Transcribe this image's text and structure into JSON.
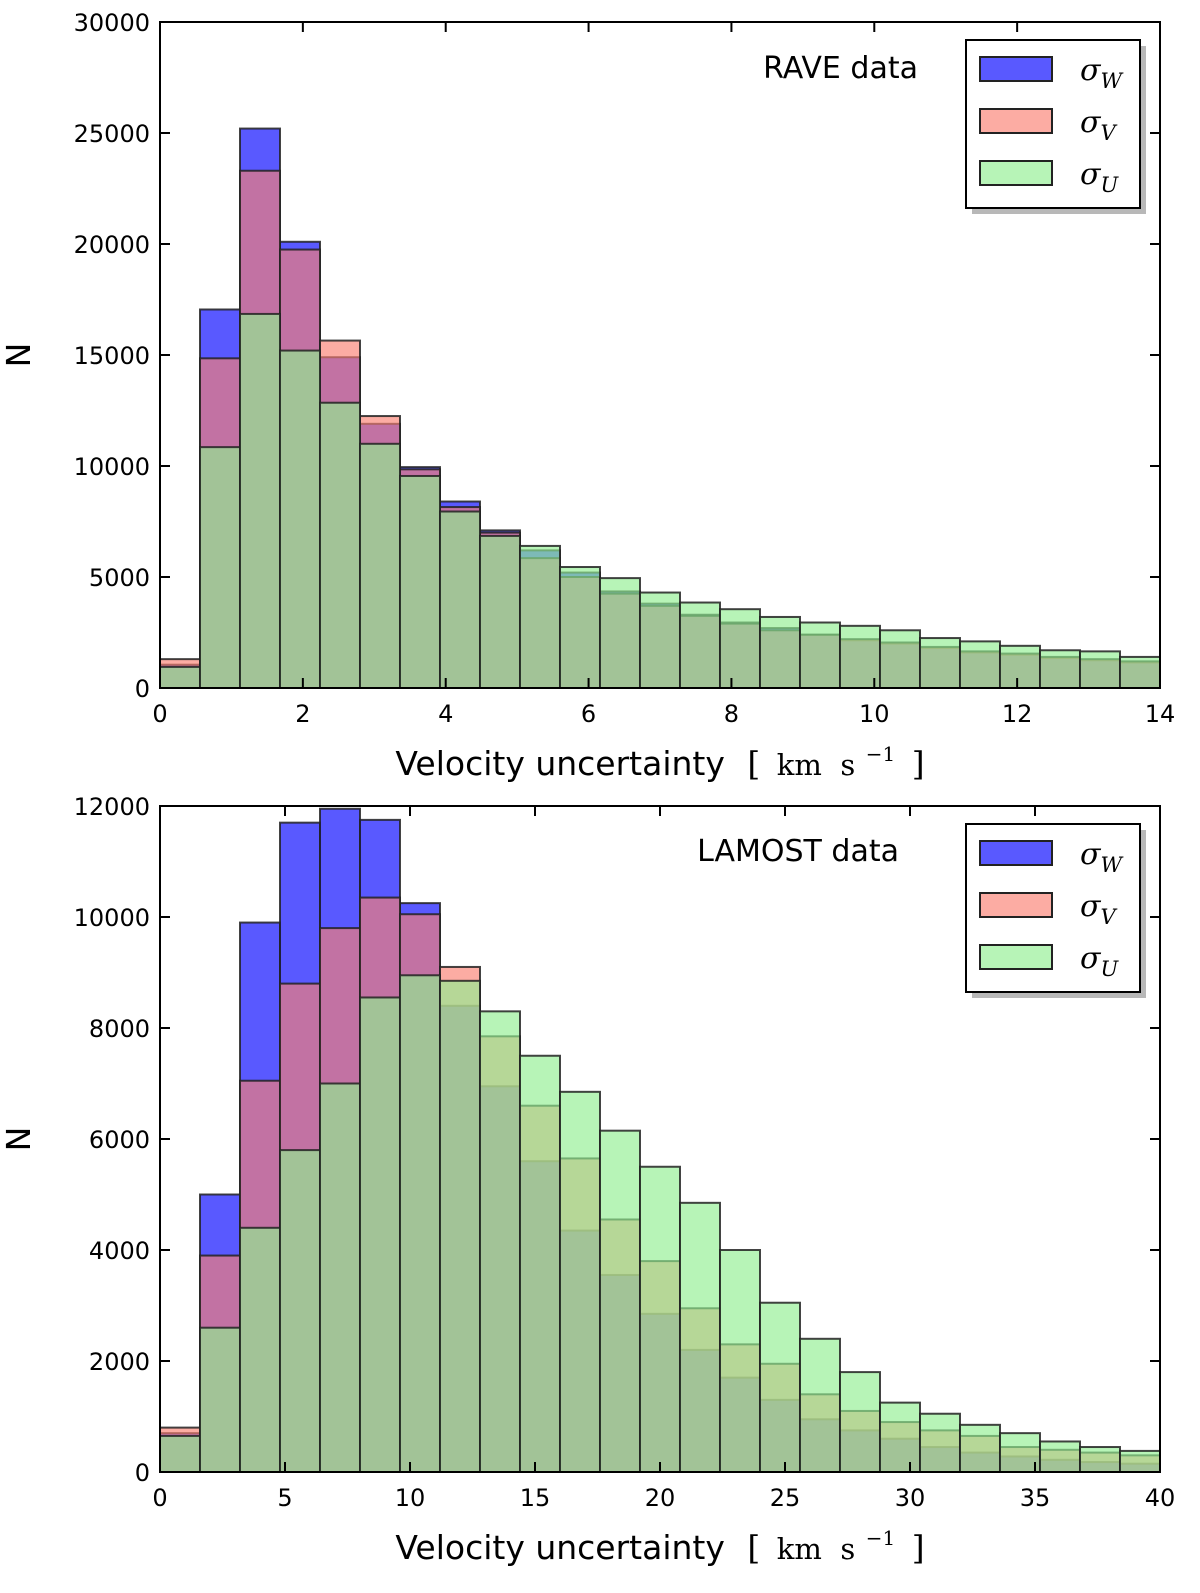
{
  "chart_data": [
    {
      "type": "bar",
      "subtype": "overlaid-histogram",
      "annotation": "RAVE data",
      "xlabel_text": "Velocity uncertainty",
      "xlabel_unit": {
        "prefix": "[",
        "km": "km",
        "s": "s",
        "exp": "−1",
        "suffix": "]"
      },
      "ylabel": "N",
      "xlim": [
        0,
        14
      ],
      "ylim": [
        0,
        30000
      ],
      "xticks": [
        "0",
        "2",
        "4",
        "6",
        "8",
        "10",
        "12",
        "14"
      ],
      "yticks": [
        "0",
        "5000",
        "10000",
        "15000",
        "20000",
        "25000",
        "30000"
      ],
      "legend_position": "top-right",
      "bin_width": 0.56,
      "bin_starts": [
        0,
        0.56,
        1.12,
        1.68,
        2.24,
        2.8,
        3.36,
        3.92,
        4.48,
        5.04,
        5.6,
        6.16,
        6.72,
        7.28,
        7.84,
        8.4,
        8.96,
        9.52,
        10.08,
        10.64,
        11.2,
        11.76,
        12.32,
        12.88,
        13.44
      ],
      "series": [
        {
          "name": "σ_W",
          "label_base": "σ",
          "label_sub": "W",
          "color": "#0000ff",
          "opacity": 0.65,
          "values": [
            1050,
            17050,
            25200,
            20100,
            14900,
            11900,
            9950,
            8400,
            7100,
            6200,
            5200,
            4350,
            3800,
            3300,
            2950,
            2700,
            2400,
            2150,
            2000,
            1800,
            1600,
            1500,
            1350,
            1250,
            1150
          ]
        },
        {
          "name": "σ_V",
          "label_base": "σ",
          "label_sub": "V",
          "color": "#fa8072",
          "opacity": 0.65,
          "values": [
            1300,
            14850,
            23300,
            19750,
            15650,
            12250,
            9850,
            8150,
            7000,
            5850,
            5000,
            4250,
            3700,
            3250,
            2900,
            2600,
            2400,
            2200,
            2050,
            1850,
            1650,
            1550,
            1400,
            1300,
            1200
          ]
        },
        {
          "name": "σ_U",
          "label_base": "σ",
          "label_sub": "U",
          "color": "#90ee90",
          "opacity": 0.65,
          "values": [
            950,
            10850,
            16850,
            15200,
            12850,
            11000,
            9550,
            7950,
            6850,
            6400,
            5450,
            4950,
            4300,
            3850,
            3550,
            3200,
            2950,
            2800,
            2600,
            2250,
            2100,
            1900,
            1700,
            1650,
            1400
          ]
        }
      ]
    },
    {
      "type": "bar",
      "subtype": "overlaid-histogram",
      "annotation": "LAMOST data",
      "xlabel_text": "Velocity uncertainty",
      "xlabel_unit": {
        "prefix": "[",
        "km": "km",
        "s": "s",
        "exp": "−1",
        "suffix": "]"
      },
      "ylabel": "N",
      "xlim": [
        0,
        40
      ],
      "ylim": [
        0,
        12000
      ],
      "xticks": [
        "0",
        "5",
        "10",
        "15",
        "20",
        "25",
        "30",
        "35",
        "40"
      ],
      "yticks": [
        "0",
        "2000",
        "4000",
        "6000",
        "8000",
        "10000",
        "12000"
      ],
      "legend_position": "top-right",
      "bin_width": 1.6,
      "bin_starts": [
        0,
        1.6,
        3.2,
        4.8,
        6.4,
        8.0,
        9.6,
        11.2,
        12.8,
        14.4,
        16.0,
        17.6,
        19.2,
        20.8,
        22.4,
        24.0,
        25.6,
        27.2,
        28.8,
        30.4,
        32.0,
        33.6,
        35.2,
        36.8,
        38.4
      ],
      "series": [
        {
          "name": "σ_W",
          "label_base": "σ",
          "label_sub": "W",
          "color": "#0000ff",
          "opacity": 0.65,
          "values": [
            700,
            5000,
            9900,
            11700,
            11950,
            11750,
            10250,
            8400,
            6950,
            5600,
            4350,
            3550,
            2850,
            2200,
            1700,
            1300,
            950,
            750,
            600,
            450,
            350,
            280,
            220,
            180,
            150
          ]
        },
        {
          "name": "σ_V",
          "label_base": "σ",
          "label_sub": "V",
          "color": "#fa8072",
          "opacity": 0.65,
          "values": [
            800,
            3900,
            7050,
            8800,
            9800,
            10350,
            10050,
            9100,
            7850,
            6600,
            5650,
            4550,
            3800,
            2950,
            2300,
            1950,
            1400,
            1100,
            900,
            750,
            650,
            450,
            400,
            350,
            300
          ]
        },
        {
          "name": "σ_U",
          "label_base": "σ",
          "label_sub": "U",
          "color": "#90ee90",
          "opacity": 0.65,
          "values": [
            650,
            2600,
            4400,
            5800,
            7000,
            8550,
            8950,
            8850,
            8300,
            7500,
            6850,
            6150,
            5500,
            4850,
            4000,
            3050,
            2400,
            1800,
            1250,
            1050,
            850,
            700,
            550,
            450,
            380
          ]
        }
      ]
    }
  ]
}
